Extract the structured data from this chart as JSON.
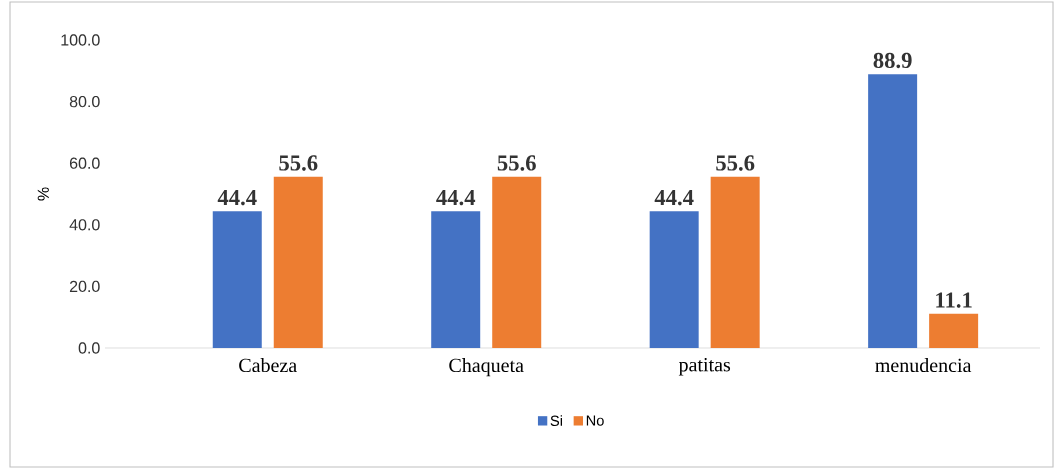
{
  "chart_data": {
    "type": "bar",
    "ylabel": "%",
    "categories": [
      "Cabeza",
      "Chaqueta",
      "patitas",
      "menudencia"
    ],
    "series": [
      {
        "name": "Si",
        "color": "#4472c4",
        "values": [
          44.4,
          44.4,
          44.4,
          88.9
        ]
      },
      {
        "name": "No",
        "color": "#ed7d31",
        "values": [
          55.6,
          55.6,
          55.6,
          11.1
        ]
      }
    ],
    "ylim": [
      0,
      100
    ],
    "yticks": [
      {
        "value": 0,
        "label": "0.0"
      },
      {
        "value": 20,
        "label": "20.0"
      },
      {
        "value": 40,
        "label": "40.0"
      },
      {
        "value": 60,
        "label": "60.0"
      },
      {
        "value": 80,
        "label": "80.0"
      },
      {
        "value": 100,
        "label": "100.0"
      }
    ],
    "data_labels": true,
    "grid": false,
    "legend": "bottom"
  }
}
